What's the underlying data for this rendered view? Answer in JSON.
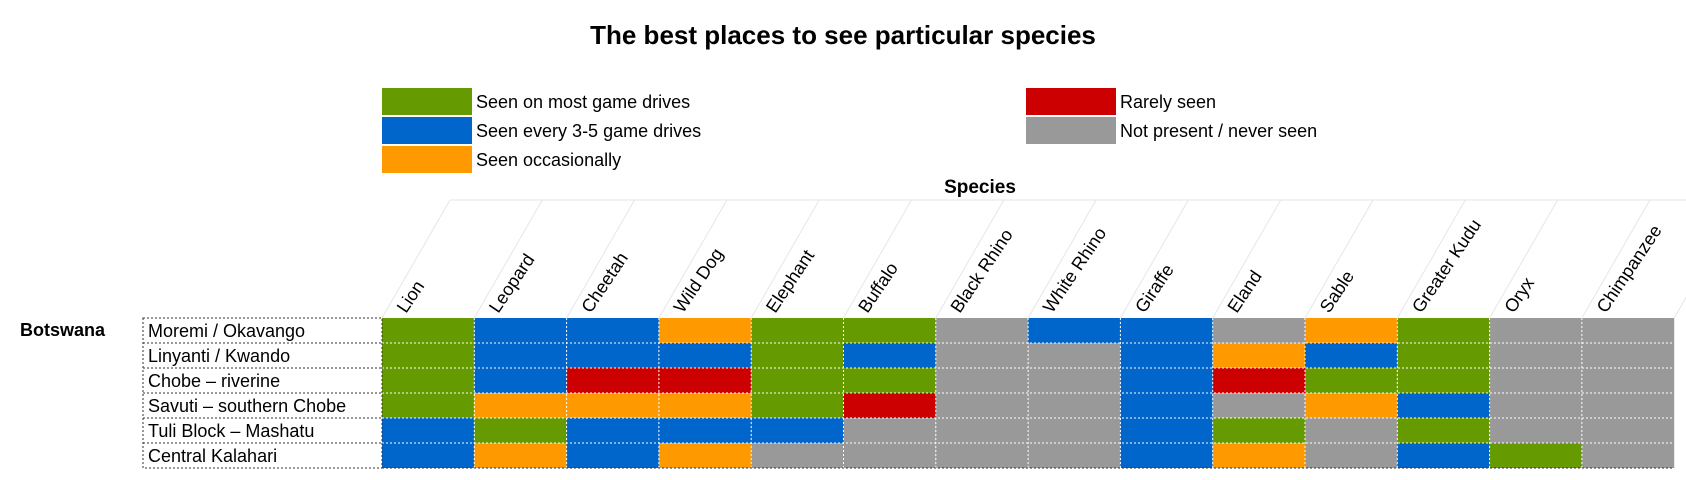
{
  "chart_data": {
    "type": "heatmap",
    "title": "The best places to see particular species",
    "column_axis_title": "Species",
    "country": "Botswana",
    "legend": [
      {
        "key": "G",
        "label": "Seen on most game drives",
        "color": "#659A00"
      },
      {
        "key": "B",
        "label": "Seen every 3-5 game drives",
        "color": "#0066CC"
      },
      {
        "key": "O",
        "label": "Seen occasionally",
        "color": "#FF9900"
      },
      {
        "key": "R",
        "label": "Rarely seen",
        "color": "#CC0000"
      },
      {
        "key": "N",
        "label": "Not present / never seen",
        "color": "#999999"
      }
    ],
    "species": [
      "Lion",
      "Leopard",
      "Cheetah",
      "Wild Dog",
      "Elephant",
      "Buffalo",
      "Black Rhino",
      "White Rhino",
      "Giraffe",
      "Eland",
      "Sable",
      "Greater Kudu",
      "Oryx",
      "Chimpanzee"
    ],
    "locations": [
      "Moremi / Okavango",
      "Linyanti / Kwando",
      "Chobe – riverine",
      "Savuti – southern Chobe",
      "Tuli Block – Mashatu",
      "Central Kalahari"
    ],
    "values": [
      [
        "G",
        "B",
        "B",
        "O",
        "G",
        "G",
        "N",
        "B",
        "B",
        "N",
        "O",
        "G",
        "N",
        "N"
      ],
      [
        "G",
        "B",
        "B",
        "B",
        "G",
        "B",
        "N",
        "N",
        "B",
        "O",
        "B",
        "G",
        "N",
        "N"
      ],
      [
        "G",
        "B",
        "R",
        "R",
        "G",
        "G",
        "N",
        "N",
        "B",
        "R",
        "G",
        "G",
        "N",
        "N"
      ],
      [
        "G",
        "O",
        "O",
        "O",
        "G",
        "R",
        "N",
        "N",
        "B",
        "N",
        "O",
        "B",
        "N",
        "N"
      ],
      [
        "B",
        "G",
        "B",
        "B",
        "B",
        "N",
        "N",
        "N",
        "B",
        "G",
        "N",
        "G",
        "N",
        "N"
      ],
      [
        "B",
        "O",
        "B",
        "O",
        "N",
        "N",
        "N",
        "N",
        "B",
        "O",
        "N",
        "B",
        "G",
        "N"
      ]
    ]
  }
}
